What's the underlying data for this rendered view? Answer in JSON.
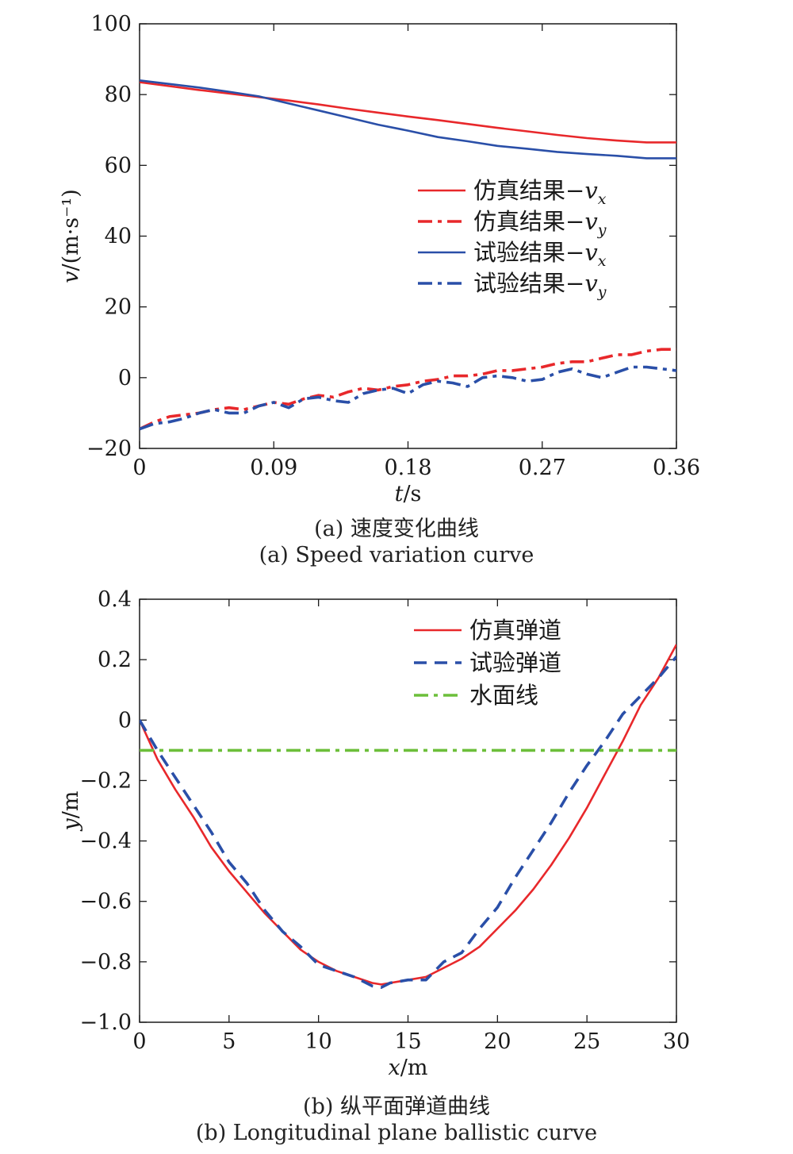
{
  "chart_data": [
    {
      "type": "line",
      "caption_cn": "(a) 速度变化曲线",
      "caption_en": "(a) Speed variation curve",
      "xlabel_var": "t",
      "xlabel_unit": "/s",
      "ylabel_var": "v",
      "ylabel_unit": "/(m·s⁻¹)",
      "xlim": [
        0,
        0.36
      ],
      "ylim": [
        -20,
        100
      ],
      "xticks": [
        0,
        0.09,
        0.18,
        0.27,
        0.36
      ],
      "xtick_labels": [
        "0",
        "0.09",
        "0.18",
        "0.27",
        "0.36"
      ],
      "yticks": [
        -20,
        0,
        20,
        40,
        60,
        80,
        100
      ],
      "ytick_labels": [
        "−20",
        "0",
        "20",
        "40",
        "60",
        "80",
        "100"
      ],
      "grid": false,
      "legend_position": "right-middle",
      "series": [
        {
          "name": "仿真结果",
          "sub": "x",
          "color": "#e8282b",
          "style": "solid",
          "x": [
            0,
            0.02,
            0.04,
            0.06,
            0.08,
            0.1,
            0.12,
            0.14,
            0.16,
            0.18,
            0.2,
            0.22,
            0.24,
            0.26,
            0.28,
            0.3,
            0.32,
            0.34,
            0.36
          ],
          "y": [
            83.5,
            82.4,
            81.3,
            80.3,
            79.3,
            78.3,
            77.2,
            76.0,
            74.9,
            73.8,
            72.8,
            71.7,
            70.6,
            69.6,
            68.6,
            67.7,
            67.0,
            66.5,
            66.5
          ]
        },
        {
          "name": "仿真结果",
          "sub": "y",
          "color": "#e8282b",
          "style": "dashdot",
          "x": [
            0,
            0.01,
            0.02,
            0.03,
            0.04,
            0.05,
            0.06,
            0.07,
            0.08,
            0.09,
            0.1,
            0.11,
            0.12,
            0.13,
            0.14,
            0.15,
            0.16,
            0.17,
            0.18,
            0.19,
            0.2,
            0.21,
            0.22,
            0.23,
            0.24,
            0.25,
            0.26,
            0.27,
            0.28,
            0.29,
            0.3,
            0.31,
            0.32,
            0.33,
            0.34,
            0.35,
            0.36
          ],
          "y": [
            -14.5,
            -12.5,
            -11,
            -10.5,
            -10,
            -9,
            -8.5,
            -9,
            -8,
            -7,
            -7.5,
            -6,
            -5,
            -5.5,
            -4,
            -3,
            -3.5,
            -2.5,
            -2,
            -1,
            -0.5,
            0.5,
            0.5,
            1,
            2,
            2,
            2.5,
            3,
            4,
            4.5,
            4.5,
            5.5,
            6.5,
            6.5,
            7.5,
            8,
            8
          ]
        },
        {
          "name": "试验结果",
          "sub": "x",
          "color": "#2a4fa8",
          "style": "solid",
          "x": [
            0,
            0.02,
            0.04,
            0.06,
            0.08,
            0.1,
            0.12,
            0.14,
            0.16,
            0.18,
            0.2,
            0.22,
            0.24,
            0.26,
            0.28,
            0.3,
            0.32,
            0.34,
            0.36
          ],
          "y": [
            84,
            83,
            82,
            80.8,
            79.5,
            77.5,
            75.5,
            73.5,
            71.5,
            69.8,
            68,
            66.8,
            65.5,
            64.7,
            63.8,
            63.2,
            62.7,
            62,
            62
          ]
        },
        {
          "name": "试验结果",
          "sub": "y",
          "color": "#2a4fa8",
          "style": "dashdot",
          "x": [
            0,
            0.01,
            0.02,
            0.03,
            0.04,
            0.05,
            0.06,
            0.07,
            0.08,
            0.09,
            0.1,
            0.11,
            0.12,
            0.13,
            0.14,
            0.15,
            0.16,
            0.17,
            0.18,
            0.19,
            0.2,
            0.21,
            0.22,
            0.23,
            0.24,
            0.25,
            0.26,
            0.27,
            0.28,
            0.29,
            0.3,
            0.31,
            0.32,
            0.33,
            0.34,
            0.35,
            0.36
          ],
          "y": [
            -14.5,
            -13,
            -12.5,
            -11.5,
            -10,
            -9,
            -10,
            -10,
            -8,
            -7,
            -8.5,
            -6,
            -5.5,
            -6.5,
            -7,
            -4.5,
            -3.5,
            -3,
            -4.5,
            -2,
            -1,
            -1.5,
            -2.5,
            0,
            0.5,
            0,
            -1,
            -0.5,
            1.5,
            2.5,
            1,
            0,
            1.5,
            3,
            3,
            2.5,
            2
          ]
        }
      ]
    },
    {
      "type": "line",
      "caption_cn": "(b) 纵平面弹道曲线",
      "caption_en": "(b) Longitudinal plane ballistic curve",
      "xlabel_var": "x",
      "xlabel_unit": "/m",
      "ylabel_var": "y",
      "ylabel_unit": "/m",
      "xlim": [
        0,
        30
      ],
      "ylim": [
        -1.0,
        0.4
      ],
      "xticks": [
        0,
        5,
        10,
        15,
        20,
        25,
        30
      ],
      "xtick_labels": [
        "0",
        "5",
        "10",
        "15",
        "20",
        "25",
        "30"
      ],
      "yticks": [
        -1.0,
        -0.8,
        -0.6,
        -0.4,
        -0.2,
        0,
        0.2,
        0.4
      ],
      "ytick_labels": [
        "−1.0",
        "−0.8",
        "−0.6",
        "−0.4",
        "−0.2",
        "0",
        "0.2",
        "0.4"
      ],
      "grid": false,
      "legend_position": "top-right",
      "series": [
        {
          "name": "仿真弹道",
          "color": "#e8282b",
          "style": "solid",
          "x": [
            0,
            1,
            2,
            3,
            4,
            5,
            6,
            7,
            8,
            9,
            10,
            11,
            12,
            13,
            13.5,
            14,
            15,
            16,
            17,
            18,
            19,
            20,
            21,
            22,
            23,
            24,
            25,
            26,
            27,
            28,
            29,
            30
          ],
          "y": [
            0,
            -0.13,
            -0.23,
            -0.32,
            -0.42,
            -0.5,
            -0.57,
            -0.64,
            -0.7,
            -0.76,
            -0.8,
            -0.83,
            -0.85,
            -0.87,
            -0.875,
            -0.87,
            -0.86,
            -0.85,
            -0.82,
            -0.79,
            -0.75,
            -0.69,
            -0.63,
            -0.56,
            -0.48,
            -0.39,
            -0.29,
            -0.18,
            -0.07,
            0.05,
            0.14,
            0.25
          ]
        },
        {
          "name": "试验弹道",
          "color": "#2a4fa8",
          "style": "dashed",
          "x": [
            0,
            1,
            2,
            3,
            4,
            5,
            6,
            7,
            8,
            9,
            10,
            11,
            12,
            13,
            13.5,
            14,
            15,
            16,
            17,
            18,
            19,
            20,
            21,
            22,
            23,
            24,
            25,
            26,
            27,
            28,
            29,
            30
          ],
          "y": [
            0,
            -0.1,
            -0.19,
            -0.28,
            -0.37,
            -0.47,
            -0.54,
            -0.63,
            -0.7,
            -0.75,
            -0.81,
            -0.83,
            -0.85,
            -0.88,
            -0.885,
            -0.87,
            -0.86,
            -0.86,
            -0.8,
            -0.77,
            -0.69,
            -0.62,
            -0.52,
            -0.43,
            -0.34,
            -0.24,
            -0.15,
            -0.07,
            0.02,
            0.08,
            0.14,
            0.21
          ]
        },
        {
          "name": "水面线",
          "color": "#6cbf3a",
          "style": "dashdot",
          "x": [
            0,
            30
          ],
          "y": [
            -0.1,
            -0.1
          ]
        }
      ]
    }
  ]
}
